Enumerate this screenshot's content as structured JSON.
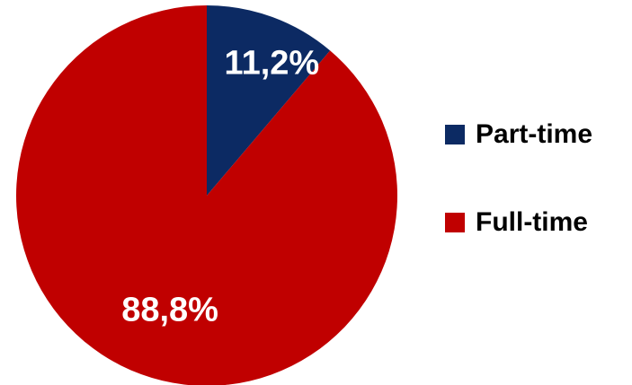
{
  "chart_data": {
    "type": "pie",
    "categories": [
      "Part-time",
      "Full-time"
    ],
    "values": [
      11.2,
      88.8
    ],
    "data_labels": [
      "11,2%",
      "88,8%"
    ],
    "colors": [
      "#0c2a63",
      "#c00000"
    ],
    "title": "",
    "legend": "right",
    "start_angle": "12 o'clock",
    "direction": "clockwise"
  },
  "legend": {
    "items": [
      {
        "label": "Part-time",
        "color": "#0c2a63"
      },
      {
        "label": "Full-time",
        "color": "#c00000"
      }
    ]
  }
}
